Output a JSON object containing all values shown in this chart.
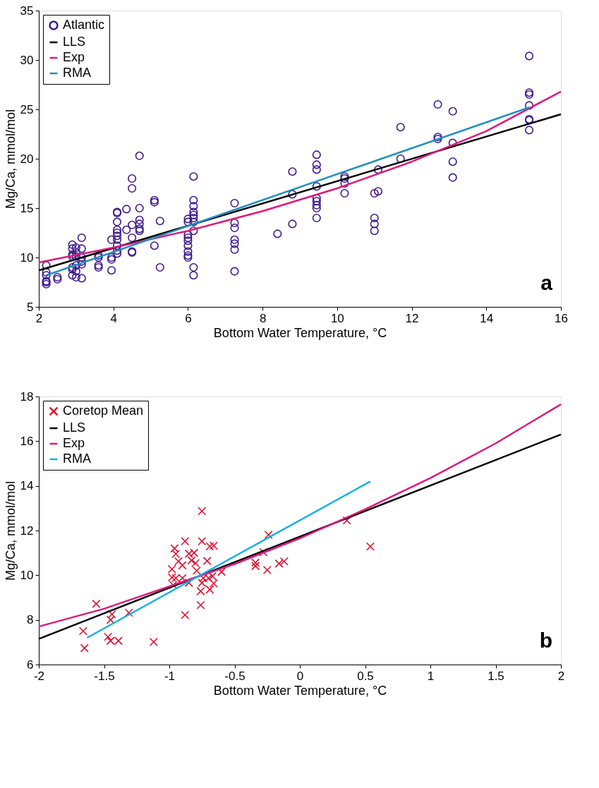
{
  "chart_data": [
    {
      "type": "scatter",
      "xlabel": "Bottom Water Temperature, °C",
      "ylabel": "Mg/Ca, mmol/mol",
      "xlim": [
        2,
        16
      ],
      "ylim": [
        5,
        35
      ],
      "xticks": [
        2,
        4,
        6,
        8,
        10,
        12,
        14,
        16
      ],
      "yticks": [
        5,
        10,
        15,
        20,
        25,
        30,
        35
      ],
      "grid": false,
      "legend": "top left",
      "annotations": [
        "a"
      ],
      "series": [
        {
          "name": "Atlantic",
          "type": "scatter",
          "marker": "circle",
          "color": "#3d1a8c",
          "x": [
            2.2,
            2.2,
            2.2,
            2.2,
            2.2,
            2.2,
            2.5,
            2.5,
            2.9,
            2.9,
            2.9,
            2.9,
            2.9,
            2.9,
            2.9,
            3.0,
            3.0,
            3.0,
            3.0,
            3.0,
            3.0,
            3.15,
            3.15,
            3.15,
            3.15,
            3.15,
            3.15,
            3.6,
            3.6,
            3.6,
            3.6,
            3.95,
            3.95,
            3.95,
            3.95,
            4.1,
            4.1,
            4.1,
            4.1,
            4.1,
            4.1,
            4.1,
            4.1,
            4.1,
            4.1,
            4.35,
            4.35,
            4.5,
            4.5,
            4.5,
            4.5,
            4.5,
            4.5,
            4.7,
            4.7,
            4.7,
            4.7,
            4.7,
            4.7,
            5.1,
            5.1,
            5.1,
            5.25,
            5.25,
            6.0,
            6.0,
            6.0,
            6.0,
            6.0,
            6.0,
            6.0,
            6.0,
            6.0,
            6.15,
            6.15,
            6.15,
            6.15,
            6.15,
            6.15,
            6.15,
            6.15,
            6.15,
            6.15,
            7.25,
            7.25,
            7.25,
            7.25,
            7.25,
            7.25,
            7.25,
            8.4,
            8.8,
            8.8,
            8.8,
            9.45,
            9.45,
            9.45,
            9.45,
            9.45,
            9.45,
            9.45,
            9.45,
            9.45,
            10.2,
            10.2,
            10.2,
            10.2,
            11.0,
            11.0,
            11.0,
            11.0,
            11.1,
            11.1,
            11.7,
            11.7,
            12.7,
            12.7,
            12.7,
            13.1,
            13.1,
            13.1,
            13.1,
            15.15,
            15.15,
            15.15,
            15.15,
            15.15,
            15.15,
            15.15
          ],
          "values": [
            9.2,
            8.5,
            8.2,
            7.5,
            7.3,
            7.6,
            7.8,
            8.0,
            10.3,
            10.1,
            10.9,
            11.3,
            9.0,
            8.8,
            8.2,
            10.5,
            10.1,
            8.0,
            9.2,
            8.6,
            11.0,
            12.0,
            10.9,
            10.0,
            9.6,
            9.3,
            7.9,
            10.0,
            9.2,
            9.0,
            10.2,
            11.8,
            10.0,
            9.8,
            8.7,
            14.6,
            14.5,
            13.6,
            12.8,
            12.5,
            12.2,
            11.8,
            11.2,
            10.7,
            10.4,
            14.9,
            12.8,
            18.0,
            17.0,
            13.3,
            12.0,
            10.6,
            10.5,
            20.3,
            15.0,
            13.8,
            13.4,
            12.9,
            12.7,
            15.8,
            15.6,
            11.2,
            13.7,
            9.0,
            13.9,
            13.6,
            12.3,
            12.0,
            11.7,
            11.2,
            10.6,
            10.2,
            10.0,
            18.2,
            15.8,
            15.2,
            14.6,
            14.3,
            14.0,
            13.6,
            12.7,
            9.0,
            8.2,
            15.5,
            13.5,
            13.0,
            11.8,
            11.4,
            10.8,
            8.6,
            12.4,
            18.7,
            16.4,
            13.4,
            20.4,
            19.4,
            18.9,
            17.2,
            16.0,
            15.7,
            15.3,
            15.0,
            14.0,
            18.2,
            18.0,
            17.5,
            16.5,
            16.5,
            14.0,
            13.4,
            12.7,
            18.9,
            16.7,
            23.2,
            20.0,
            25.5,
            22.2,
            22.0,
            24.8,
            21.6,
            19.7,
            18.1,
            30.4,
            26.7,
            26.5,
            25.4,
            24.0,
            23.9,
            22.9
          ]
        },
        {
          "name": "LLS",
          "type": "line",
          "color": "#000000",
          "x": [
            2,
            16
          ],
          "values": [
            8.7,
            24.5
          ]
        },
        {
          "name": "Exp",
          "type": "line",
          "color": "#e0177d",
          "x": [
            2,
            4,
            6,
            8,
            10,
            12,
            14,
            16
          ],
          "values": [
            9.5,
            11.0,
            12.7,
            14.7,
            17.0,
            19.7,
            22.8,
            26.8
          ]
        },
        {
          "name": "RMA",
          "type": "line",
          "color": "#2090c0",
          "x": [
            2.2,
            15.15
          ],
          "values": [
            8.2,
            25.2
          ]
        }
      ]
    },
    {
      "type": "scatter",
      "xlabel": "Bottom Water Temperature, °C",
      "ylabel": "Mg/Ca, mmol/mol",
      "xlim": [
        -2,
        2
      ],
      "ylim": [
        6,
        18
      ],
      "xticks": [
        -2,
        -1.5,
        -1,
        -0.5,
        0,
        0.5,
        1,
        1.5,
        2
      ],
      "yticks": [
        6,
        8,
        10,
        12,
        14,
        16,
        18
      ],
      "grid": false,
      "legend": "top left",
      "annotations": [
        "b"
      ],
      "series": [
        {
          "name": "Coretop Mean",
          "type": "scatter",
          "marker": "cross",
          "color": "#e0102f",
          "x": [
            -1.66,
            -1.65,
            -1.56,
            -1.47,
            -1.45,
            -1.44,
            -1.45,
            -1.39,
            -1.31,
            -1.12,
            -0.98,
            -0.98,
            -0.97,
            -0.96,
            -0.95,
            -0.95,
            -0.93,
            -0.9,
            -0.9,
            -0.88,
            -0.88,
            -0.85,
            -0.85,
            -0.83,
            -0.81,
            -0.8,
            -0.79,
            -0.75,
            -0.75,
            -0.76,
            -0.76,
            -0.75,
            -0.74,
            -0.71,
            -0.7,
            -0.69,
            -0.69,
            -0.66,
            -0.66,
            -0.67,
            -0.6,
            -0.34,
            -0.34,
            -0.28,
            -0.25,
            -0.24,
            -0.16,
            -0.12,
            0.36,
            0.54
          ],
          "values": [
            7.5,
            6.74,
            8.72,
            7.24,
            7.06,
            8.25,
            8.0,
            7.06,
            8.32,
            7.01,
            10.27,
            9.9,
            9.56,
            11.2,
            10.95,
            9.87,
            10.62,
            9.87,
            10.44,
            11.52,
            8.22,
            10.96,
            9.66,
            10.66,
            11.0,
            10.54,
            10.2,
            12.87,
            11.52,
            9.28,
            8.66,
            9.66,
            9.87,
            10.64,
            9.87,
            9.36,
            11.29,
            11.32,
            9.63,
            9.95,
            10.15,
            10.56,
            10.41,
            11.03,
            10.23,
            11.81,
            10.52,
            10.62,
            12.45,
            11.28
          ]
        },
        {
          "name": "LLS",
          "type": "line",
          "color": "#000000",
          "x": [
            -2,
            2
          ],
          "values": [
            7.15,
            16.3
          ]
        },
        {
          "name": "Exp",
          "type": "line",
          "color": "#e0177d",
          "x": [
            -2,
            -1.5,
            -1,
            -0.5,
            0,
            0.5,
            1,
            1.5,
            2
          ],
          "values": [
            7.7,
            8.5,
            9.5,
            10.5,
            11.65,
            12.95,
            14.35,
            15.9,
            17.65
          ]
        },
        {
          "name": "RMA",
          "type": "line",
          "color": "#14b0e8",
          "x": [
            -1.63,
            0.54
          ],
          "values": [
            7.2,
            14.2
          ]
        }
      ]
    }
  ]
}
